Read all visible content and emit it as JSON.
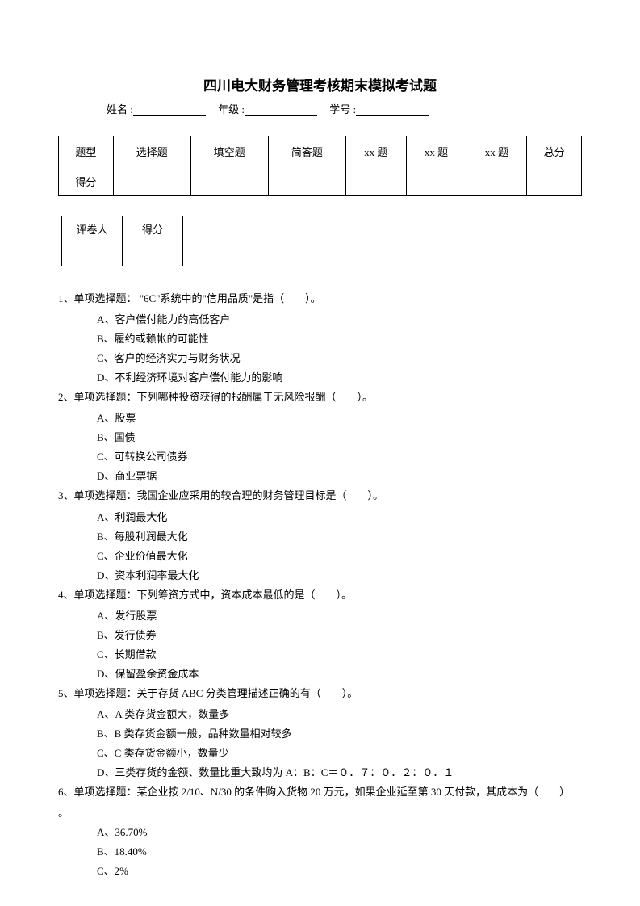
{
  "title": "四川电大财务管理考核期末模拟考试题",
  "info": {
    "name_label": "姓名 :",
    "grade_label": "年级 :",
    "id_label": "学号 :"
  },
  "score_main": {
    "headers": [
      "题型",
      "选择题",
      "填空题",
      "简答题",
      "xx 题",
      "xx 题",
      "xx 题",
      "总分"
    ],
    "row2_label": "得分"
  },
  "score_small": {
    "c1": "评卷人",
    "c2": "得分"
  },
  "questions": [
    {
      "stem": "1、单项选择题： \"6C\"系统中的\"信用品质\"是指（　　）。",
      "options": [
        "A、客户偿付能力的高低客户",
        "B、履约或赖帐的可能性",
        "C、客户的经济实力与财务状况",
        "D、不利经济环境对客户偿付能力的影响"
      ]
    },
    {
      "stem": "2、单项选择题：下列哪种投资获得的报酬属于无风险报酬（　　）。",
      "options": [
        "A、股票",
        "B、国债",
        "C、可转换公司债券",
        "D、商业票据"
      ]
    },
    {
      "stem": "3、单项选择题：我国企业应采用的较合理的财务管理目标是（　　）。",
      "options": [
        "A、利润最大化",
        "B、每股利润最大化",
        "C、企业价值最大化",
        "D、资本利润率最大化"
      ]
    },
    {
      "stem": "4、单项选择题：下列筹资方式中，资本成本最低的是（　　）。",
      "options": [
        "A、发行股票",
        "B、发行债券",
        "C、长期借款",
        "D、保留盈余资金成本"
      ]
    },
    {
      "stem": "5、单项选择题：关于存货 ABC 分类管理描述正确的有（　　）。",
      "options": [
        "A、A 类存货金额大，数量多",
        "B、B 类存货金额一般，品种数量相对较多",
        "C、C 类存货金额小，数量少",
        "D、三类存货的金额、数量比重大致均为 A：B：C＝０．７：０．２：０．１"
      ]
    },
    {
      "stem": "6、单项选择题：某企业按 2/10、N/30 的条件购入货物 20 万元，如果企业延至第 30 天付款，其成本为（　　）",
      "tail": "。",
      "options": [
        "A、36.70%",
        "B、18.40%",
        "C、2%"
      ]
    }
  ]
}
